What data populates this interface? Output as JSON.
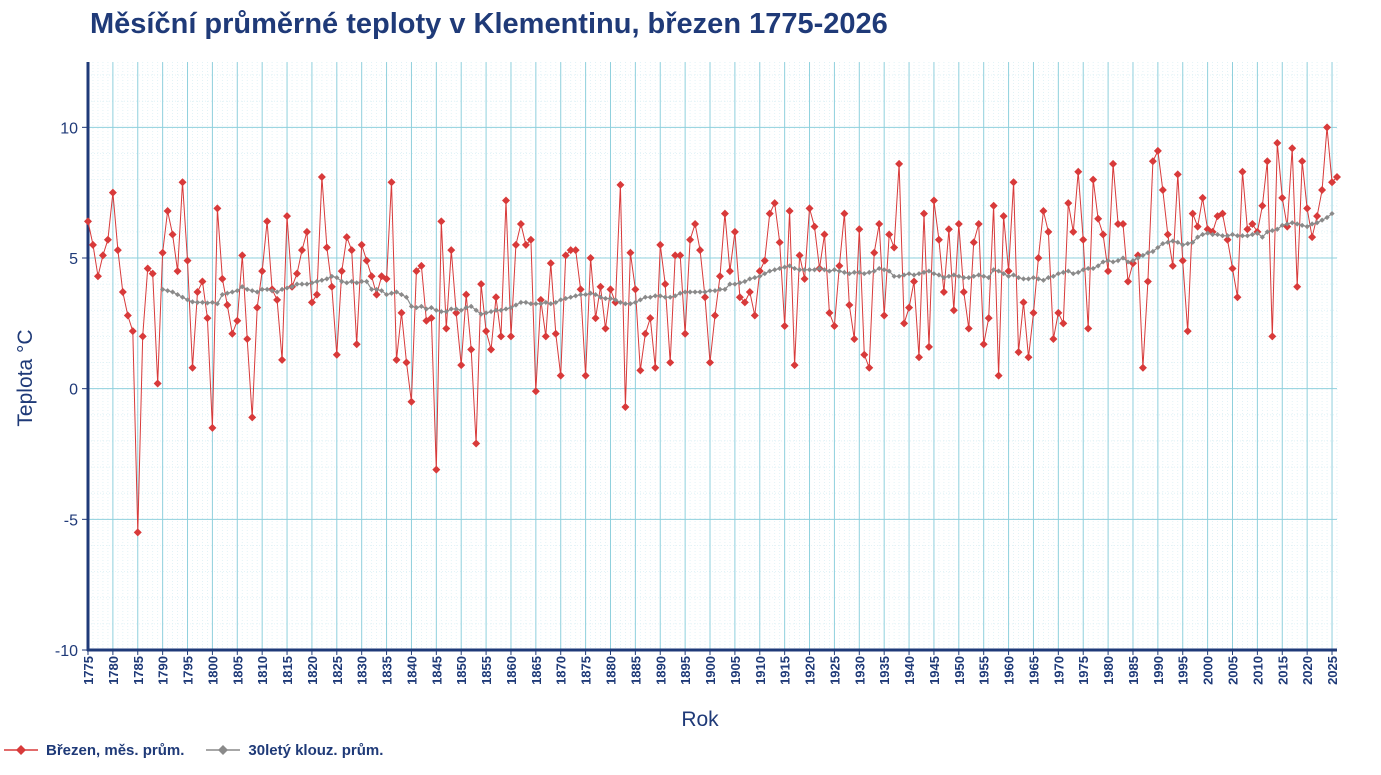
{
  "chart_data": {
    "type": "line",
    "title": "Měsíční průměrné teploty v Klementinu, březen 1775-2026",
    "xlabel": "Rok",
    "ylabel": "Teplota  °C",
    "xlim": [
      1775,
      2026
    ],
    "ylim": [
      -10,
      12.5
    ],
    "yticks": [
      -10,
      -5,
      0,
      5,
      10
    ],
    "grid": true,
    "legend_position": "bottom-left",
    "x_start": 1775,
    "series": [
      {
        "name": "Březen, měs. prům.",
        "color": "#d83a3a",
        "start_year": 1775,
        "values": [
          6.4,
          5.5,
          4.3,
          5.1,
          5.7,
          7.5,
          5.3,
          3.7,
          2.8,
          2.2,
          -5.5,
          2.0,
          4.6,
          4.4,
          0.2,
          5.2,
          6.8,
          5.9,
          4.5,
          7.9,
          4.9,
          0.8,
          3.7,
          4.1,
          2.7,
          -1.5,
          6.9,
          4.2,
          3.2,
          2.1,
          2.6,
          5.1,
          1.9,
          -1.1,
          3.1,
          4.5,
          6.4,
          3.8,
          3.4,
          1.1,
          6.6,
          3.9,
          4.4,
          5.3,
          6.0,
          3.3,
          3.6,
          8.1,
          5.4,
          3.9,
          1.3,
          4.5,
          5.8,
          5.3,
          1.7,
          5.5,
          4.9,
          4.3,
          3.6,
          4.3,
          4.2,
          7.9,
          1.1,
          2.9,
          1.0,
          -0.5,
          4.5,
          4.7,
          2.6,
          2.7,
          -3.1,
          6.4,
          2.3,
          5.3,
          2.9,
          0.9,
          3.6,
          1.5,
          -2.1,
          4.0,
          2.2,
          1.5,
          3.5,
          2.0,
          7.2,
          2.0,
          5.5,
          6.3,
          5.5,
          5.7,
          -0.1,
          3.4,
          2.0,
          4.8,
          2.1,
          0.5,
          5.1,
          5.3,
          5.3,
          3.8,
          0.5,
          5.0,
          2.7,
          3.9,
          2.3,
          3.8,
          3.3,
          7.8,
          -0.7,
          5.2,
          3.8,
          0.7,
          2.1,
          2.7,
          0.8,
          5.5,
          4.0,
          1.0,
          5.1,
          5.1,
          2.1,
          5.7,
          6.3,
          5.3,
          3.5,
          1.0,
          2.8,
          4.3,
          6.7,
          4.5,
          6.0,
          3.5,
          3.3,
          3.7,
          2.8,
          4.5,
          4.9,
          6.7,
          7.1,
          5.6,
          2.4,
          6.8,
          0.9,
          5.1,
          4.2,
          6.9,
          6.2,
          4.6,
          5.9,
          2.9,
          2.4,
          4.7,
          6.7,
          3.2,
          1.9,
          6.1,
          1.3,
          0.8,
          5.2,
          6.3,
          2.8,
          5.9,
          5.4,
          8.6,
          2.5,
          3.1,
          4.1,
          1.2,
          6.7,
          1.6,
          7.2,
          5.7,
          3.7,
          6.1,
          3.0,
          6.3,
          3.7,
          2.3,
          5.6,
          6.3,
          1.7,
          2.7,
          7.0,
          0.5,
          6.6,
          4.5,
          7.9,
          1.4,
          3.3,
          1.2,
          2.9,
          5.0,
          6.8,
          6.0,
          1.9,
          2.9,
          2.5,
          7.1,
          6.0,
          8.3,
          5.7,
          2.3,
          8.0,
          6.5,
          5.9,
          4.5,
          8.6,
          6.3,
          6.3,
          4.1,
          4.8,
          5.1,
          0.8,
          4.1,
          8.7,
          9.1,
          7.6,
          5.9,
          4.7,
          8.2,
          4.9,
          2.2,
          6.7,
          6.2,
          7.3,
          6.1,
          6.0,
          6.6,
          6.7,
          5.7,
          4.6,
          3.5,
          8.3,
          6.1,
          6.3,
          6.0,
          7.0,
          8.7,
          2.0,
          9.4,
          7.3,
          6.2,
          9.2,
          3.9,
          8.7,
          6.9,
          5.8,
          6.6,
          7.6,
          10.0,
          7.9,
          8.1
        ]
      },
      {
        "name": "30letý klouz. prům.",
        "color": "#8a8a8a",
        "start_year": 1790,
        "values": [
          3.8,
          3.75,
          3.7,
          3.6,
          3.5,
          3.4,
          3.32,
          3.3,
          3.3,
          3.28,
          3.3,
          3.25,
          3.6,
          3.65,
          3.7,
          3.75,
          3.9,
          3.8,
          3.75,
          3.7,
          3.8,
          3.8,
          3.75,
          3.7,
          3.8,
          3.85,
          3.9,
          4.0,
          4.0,
          4.0,
          4.05,
          4.1,
          4.15,
          4.2,
          4.3,
          4.25,
          4.1,
          4.05,
          4.1,
          4.05,
          4.1,
          4.1,
          3.8,
          3.8,
          3.75,
          3.6,
          3.65,
          3.7,
          3.6,
          3.5,
          3.15,
          3.1,
          3.15,
          3.05,
          3.1,
          3.0,
          2.95,
          2.95,
          3.05,
          3.05,
          3.0,
          3.1,
          3.15,
          3.0,
          2.85,
          2.9,
          2.95,
          3.0,
          3.0,
          3.05,
          3.1,
          3.2,
          3.3,
          3.3,
          3.25,
          3.25,
          3.25,
          3.3,
          3.25,
          3.3,
          3.4,
          3.45,
          3.5,
          3.55,
          3.6,
          3.6,
          3.65,
          3.6,
          3.5,
          3.45,
          3.45,
          3.4,
          3.3,
          3.25,
          3.25,
          3.3,
          3.4,
          3.5,
          3.5,
          3.55,
          3.55,
          3.5,
          3.5,
          3.55,
          3.65,
          3.7,
          3.7,
          3.7,
          3.7,
          3.7,
          3.75,
          3.75,
          3.8,
          3.8,
          4.0,
          4.0,
          4.05,
          4.1,
          4.2,
          4.25,
          4.3,
          4.4,
          4.5,
          4.55,
          4.6,
          4.65,
          4.7,
          4.6,
          4.55,
          4.55,
          4.55,
          4.55,
          4.6,
          4.55,
          4.5,
          4.55,
          4.5,
          4.45,
          4.4,
          4.45,
          4.45,
          4.4,
          4.45,
          4.5,
          4.6,
          4.55,
          4.5,
          4.3,
          4.3,
          4.35,
          4.4,
          4.35,
          4.4,
          4.45,
          4.5,
          4.4,
          4.35,
          4.25,
          4.3,
          4.35,
          4.3,
          4.25,
          4.25,
          4.3,
          4.35,
          4.3,
          4.25,
          4.55,
          4.5,
          4.4,
          4.3,
          4.35,
          4.25,
          4.2,
          4.2,
          4.25,
          4.2,
          4.15,
          4.25,
          4.3,
          4.4,
          4.45,
          4.5,
          4.4,
          4.45,
          4.55,
          4.6,
          4.6,
          4.7,
          4.85,
          4.9,
          4.85,
          4.9,
          5.0,
          4.85,
          4.9,
          5.0,
          5.1,
          5.2,
          5.25,
          5.4,
          5.55,
          5.6,
          5.65,
          5.6,
          5.5,
          5.55,
          5.6,
          5.8,
          5.9,
          5.95,
          5.9,
          5.9,
          5.85,
          5.85,
          5.9,
          5.85,
          5.85,
          5.85,
          5.9,
          5.95,
          5.8,
          6.0,
          6.05,
          6.1,
          6.25,
          6.3,
          6.35,
          6.3,
          6.25,
          6.2,
          6.3,
          6.35,
          6.45,
          6.55,
          6.7
        ]
      }
    ]
  }
}
